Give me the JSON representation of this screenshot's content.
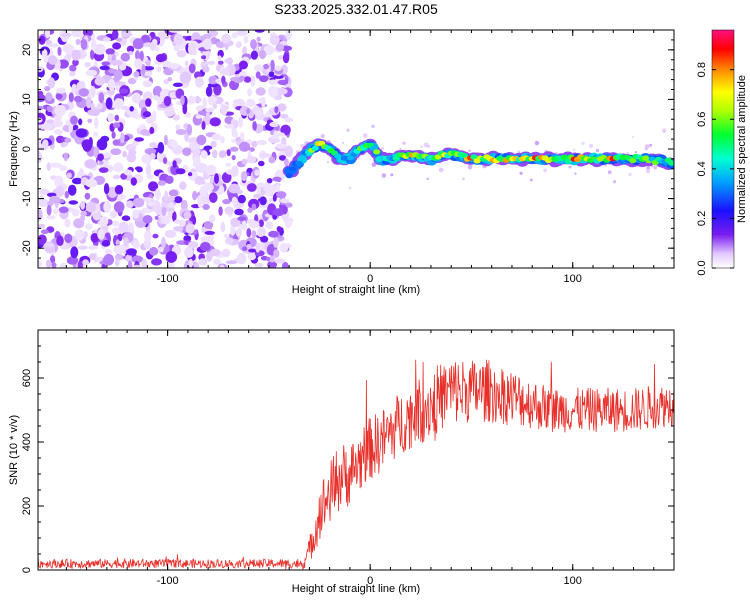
{
  "title": "S233.2025.332.01.47.R05",
  "chart_data": [
    {
      "type": "heatmap",
      "xlabel": "Height of straight line (km)",
      "ylabel": "Frequency (Hz)",
      "xlim": [
        -164,
        150
      ],
      "ylim": [
        -24,
        24
      ],
      "xticks": [
        -100,
        0,
        100
      ],
      "yticks": [
        -20,
        -10,
        0,
        10,
        20
      ],
      "colorbar": {
        "label": "Normalized spectral amplitude",
        "range": [
          0,
          0.96
        ],
        "ticks": [
          0.0,
          0.2,
          0.4,
          0.6,
          0.8
        ]
      },
      "ridge": {
        "x": [
          -40,
          -32,
          -25,
          -20,
          -15,
          -10,
          -5,
          0,
          5,
          10,
          20,
          30,
          40,
          50,
          60,
          70,
          80,
          90,
          100,
          110,
          120,
          130,
          140,
          150
        ],
        "frequency": [
          -5,
          -1,
          1,
          0,
          -2,
          -2,
          0,
          1,
          -2,
          -2,
          -1,
          -2,
          -1,
          -2,
          -2,
          -2,
          -2,
          -2,
          -2,
          -2,
          -2,
          -2,
          -2,
          -3
        ],
        "amplitude": [
          0.3,
          0.5,
          0.9,
          0.6,
          0.5,
          0.5,
          0.6,
          0.7,
          0.6,
          0.5,
          0.9,
          0.7,
          0.7,
          0.9,
          0.8,
          0.8,
          0.9,
          0.7,
          0.9,
          0.6,
          0.9,
          0.7,
          0.6,
          0.5
        ]
      },
      "noise_region_x": [
        -164,
        -40
      ]
    },
    {
      "type": "line",
      "xlabel": "Height of straight line (km)",
      "ylabel": "SNR (10 * v/v)",
      "xlim": [
        -164,
        150
      ],
      "ylim": [
        0,
        750
      ],
      "xticks": [
        -100,
        0,
        100
      ],
      "yticks": [
        0,
        200,
        400,
        600
      ],
      "color": "#e8302a",
      "envelope": {
        "x": [
          -164,
          -40,
          -33,
          -30,
          -25,
          -20,
          -15,
          -10,
          -5,
          0,
          5,
          10,
          15,
          20,
          25,
          30,
          35,
          40,
          50,
          60,
          70,
          80,
          90,
          100,
          110,
          120,
          130,
          140,
          150
        ],
        "mean": [
          20,
          20,
          20,
          60,
          180,
          240,
          290,
          300,
          340,
          380,
          400,
          430,
          460,
          480,
          500,
          520,
          540,
          560,
          560,
          560,
          540,
          520,
          500,
          500,
          500,
          500,
          500,
          510,
          520
        ],
        "spread": [
          14,
          14,
          18,
          40,
          90,
          100,
          110,
          100,
          100,
          100,
          100,
          100,
          100,
          100,
          110,
          110,
          110,
          110,
          100,
          100,
          90,
          80,
          70,
          70,
          70,
          70,
          70,
          70,
          70
        ]
      }
    }
  ]
}
